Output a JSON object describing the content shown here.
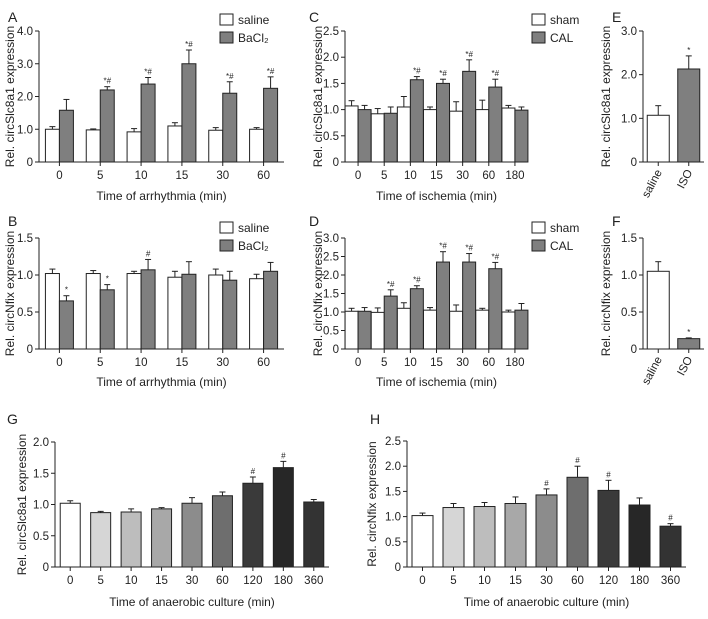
{
  "colors": {
    "white": "#ffffff",
    "gray": "#7f7f7f",
    "axis": "#222222"
  },
  "chart_data": [
    {
      "panel_label": "A",
      "type": "bar",
      "ylabel": "Rel. circSlc8a1 expression",
      "xlabel": "Time of arrhythmia (min)",
      "categories": [
        "0",
        "5",
        "10",
        "15",
        "30",
        "60"
      ],
      "ylim": [
        0,
        4.0
      ],
      "yticks": [
        "0",
        "1.0",
        "2.0",
        "3.0",
        "4.0"
      ],
      "ytick_values": [
        0,
        1,
        2,
        3,
        4
      ],
      "legend": [
        "saline",
        "BaCl₂"
      ],
      "series": [
        {
          "name": "saline",
          "color": "#ffffff",
          "values": [
            1.0,
            0.98,
            0.92,
            1.1,
            0.97,
            1.0
          ],
          "errors": [
            0.08,
            0.03,
            0.1,
            0.1,
            0.08,
            0.05
          ]
        },
        {
          "name": "BaCl₂",
          "color": "#7f7f7f",
          "values": [
            1.58,
            2.2,
            2.38,
            3.0,
            2.1,
            2.25
          ],
          "errors": [
            0.33,
            0.1,
            0.2,
            0.42,
            0.35,
            0.35
          ],
          "annotations": [
            "",
            "*#",
            "*#",
            "*#",
            "*#",
            "*#"
          ]
        }
      ]
    },
    {
      "panel_label": "B",
      "type": "bar",
      "ylabel": "Rel. circNfix expression",
      "xlabel": "Time of arrhythmia (min)",
      "categories": [
        "0",
        "5",
        "10",
        "15",
        "30",
        "60"
      ],
      "ylim": [
        0,
        1.5
      ],
      "yticks": [
        "0",
        "0.5",
        "1.0",
        "1.5"
      ],
      "ytick_values": [
        0,
        0.5,
        1.0,
        1.5
      ],
      "legend": [
        "saline",
        "BaCl₂"
      ],
      "series": [
        {
          "name": "saline",
          "color": "#ffffff",
          "values": [
            1.02,
            1.02,
            1.02,
            0.97,
            1.0,
            0.95
          ],
          "errors": [
            0.06,
            0.04,
            0.03,
            0.08,
            0.08,
            0.06
          ]
        },
        {
          "name": "BaCl₂",
          "color": "#7f7f7f",
          "values": [
            0.65,
            0.8,
            1.07,
            1.01,
            0.93,
            1.05
          ],
          "errors": [
            0.07,
            0.07,
            0.14,
            0.17,
            0.12,
            0.12
          ],
          "annotations": [
            "*",
            "*",
            "#",
            "",
            "",
            ""
          ]
        }
      ]
    },
    {
      "panel_label": "C",
      "type": "bar",
      "ylabel": "Rel. circSlc8a1 expression",
      "xlabel": "Time of ischemia (min)",
      "categories": [
        "0",
        "5",
        "10",
        "15",
        "30",
        "60",
        "180"
      ],
      "ylim": [
        0,
        2.5
      ],
      "yticks": [
        "0",
        "0.5",
        "1.0",
        "1.5",
        "2.0",
        "2.5"
      ],
      "ytick_values": [
        0,
        0.5,
        1.0,
        1.5,
        2.0,
        2.5
      ],
      "legend": [
        "sham",
        "CAL"
      ],
      "series": [
        {
          "name": "sham",
          "color": "#ffffff",
          "values": [
            1.07,
            0.92,
            1.05,
            1.0,
            0.97,
            1.0,
            1.03
          ],
          "errors": [
            0.1,
            0.1,
            0.2,
            0.05,
            0.18,
            0.18,
            0.05
          ]
        },
        {
          "name": "CAL",
          "color": "#7f7f7f",
          "values": [
            1.0,
            0.93,
            1.57,
            1.5,
            1.73,
            1.43,
            0.99
          ],
          "errors": [
            0.08,
            0.12,
            0.06,
            0.08,
            0.22,
            0.15,
            0.06
          ],
          "annotations": [
            "",
            "",
            "*#",
            "*#",
            "*#",
            "*#",
            ""
          ]
        }
      ]
    },
    {
      "panel_label": "D",
      "type": "bar",
      "ylabel": "Rel. circNfix expression",
      "xlabel": "Time of ischemia (min)",
      "categories": [
        "0",
        "5",
        "10",
        "15",
        "30",
        "60",
        "180"
      ],
      "ylim": [
        0,
        3.0
      ],
      "yticks": [
        "0",
        "0.5",
        "1.0",
        "1.5",
        "2.0",
        "2.5",
        "3.0"
      ],
      "ytick_values": [
        0,
        0.5,
        1.0,
        1.5,
        2.0,
        2.5,
        3.0
      ],
      "legend": [
        "sham",
        "CAL"
      ],
      "series": [
        {
          "name": "sham",
          "color": "#ffffff",
          "values": [
            1.02,
            0.99,
            1.1,
            1.05,
            1.02,
            1.05,
            1.0
          ],
          "errors": [
            0.08,
            0.12,
            0.15,
            0.07,
            0.17,
            0.05,
            0.05
          ]
        },
        {
          "name": "CAL",
          "color": "#7f7f7f",
          "values": [
            1.02,
            1.43,
            1.63,
            2.35,
            2.35,
            2.17,
            1.05
          ],
          "errors": [
            0.1,
            0.17,
            0.08,
            0.28,
            0.23,
            0.17,
            0.18
          ],
          "annotations": [
            "",
            "*#",
            "*#",
            "*#",
            "*#",
            "*#",
            ""
          ]
        }
      ]
    },
    {
      "panel_label": "E",
      "type": "bar",
      "ylabel": "Rel. circSlc8a1 expression",
      "xlabel": "",
      "categories": [
        "saline",
        "ISO"
      ],
      "ylim": [
        0,
        3.0
      ],
      "yticks": [
        "0",
        "1.0",
        "2.0",
        "3.0"
      ],
      "ytick_values": [
        0,
        1,
        2,
        3
      ],
      "series": [
        {
          "name": "value",
          "colors": [
            "#ffffff",
            "#7f7f7f"
          ],
          "values": [
            1.07,
            2.13
          ],
          "errors": [
            0.22,
            0.3
          ],
          "annotations": [
            "",
            "*"
          ]
        }
      ]
    },
    {
      "panel_label": "F",
      "type": "bar",
      "ylabel": "Rel. circNfix expression",
      "xlabel": "",
      "categories": [
        "saline",
        "ISO"
      ],
      "ylim": [
        0,
        1.5
      ],
      "yticks": [
        "0",
        "0.5",
        "1.0",
        "1.5"
      ],
      "ytick_values": [
        0,
        0.5,
        1.0,
        1.5
      ],
      "series": [
        {
          "name": "value",
          "colors": [
            "#ffffff",
            "#7f7f7f"
          ],
          "values": [
            1.05,
            0.14
          ],
          "errors": [
            0.13,
            0.01
          ],
          "annotations": [
            "",
            "*"
          ]
        }
      ]
    },
    {
      "panel_label": "G",
      "type": "bar",
      "ylabel": "Rel. circSlc8a1 expression",
      "xlabel": "Time of anaerobic culture (min)",
      "categories": [
        "0",
        "5",
        "10",
        "15",
        "30",
        "60",
        "120",
        "180",
        "360"
      ],
      "ylim": [
        0,
        2.0
      ],
      "yticks": [
        "0",
        "0.5",
        "1.0",
        "1.5",
        "2.0"
      ],
      "ytick_values": [
        0,
        0.5,
        1.0,
        1.5,
        2.0
      ],
      "series": [
        {
          "name": "value",
          "colors": [
            "#ffffff",
            "#d6d6d6",
            "#bdbdbd",
            "#a8a8a8",
            "#8c8c8c",
            "#6e6e6e",
            "#3a3a3a",
            "#272727",
            "#333333"
          ],
          "values": [
            1.02,
            0.87,
            0.88,
            0.93,
            1.02,
            1.14,
            1.34,
            1.59,
            1.04
          ],
          "errors": [
            0.04,
            0.02,
            0.05,
            0.02,
            0.09,
            0.06,
            0.1,
            0.1,
            0.04
          ],
          "annotations": [
            "",
            "",
            "",
            "",
            "",
            "",
            "#",
            "#",
            ""
          ]
        }
      ]
    },
    {
      "panel_label": "H",
      "type": "bar",
      "ylabel": "Rel. circNfix expression",
      "xlabel": "Time of anaerobic culture (min)",
      "categories": [
        "0",
        "5",
        "10",
        "15",
        "30",
        "60",
        "120",
        "180",
        "360"
      ],
      "ylim": [
        0,
        2.5
      ],
      "yticks": [
        "0",
        "0.5",
        "1.0",
        "1.5",
        "2.0",
        "2.5"
      ],
      "ytick_values": [
        0,
        0.5,
        1.0,
        1.5,
        2.0,
        2.5
      ],
      "series": [
        {
          "name": "value",
          "colors": [
            "#ffffff",
            "#d6d6d6",
            "#bdbdbd",
            "#a8a8a8",
            "#8c8c8c",
            "#6e6e6e",
            "#3a3a3a",
            "#272727",
            "#333333"
          ],
          "values": [
            1.02,
            1.18,
            1.2,
            1.26,
            1.43,
            1.78,
            1.52,
            1.23,
            0.81
          ],
          "errors": [
            0.05,
            0.08,
            0.08,
            0.13,
            0.12,
            0.22,
            0.2,
            0.14,
            0.05
          ],
          "annotations": [
            "",
            "",
            "",
            "",
            "#",
            "#",
            "#",
            "",
            "#"
          ]
        }
      ]
    }
  ]
}
